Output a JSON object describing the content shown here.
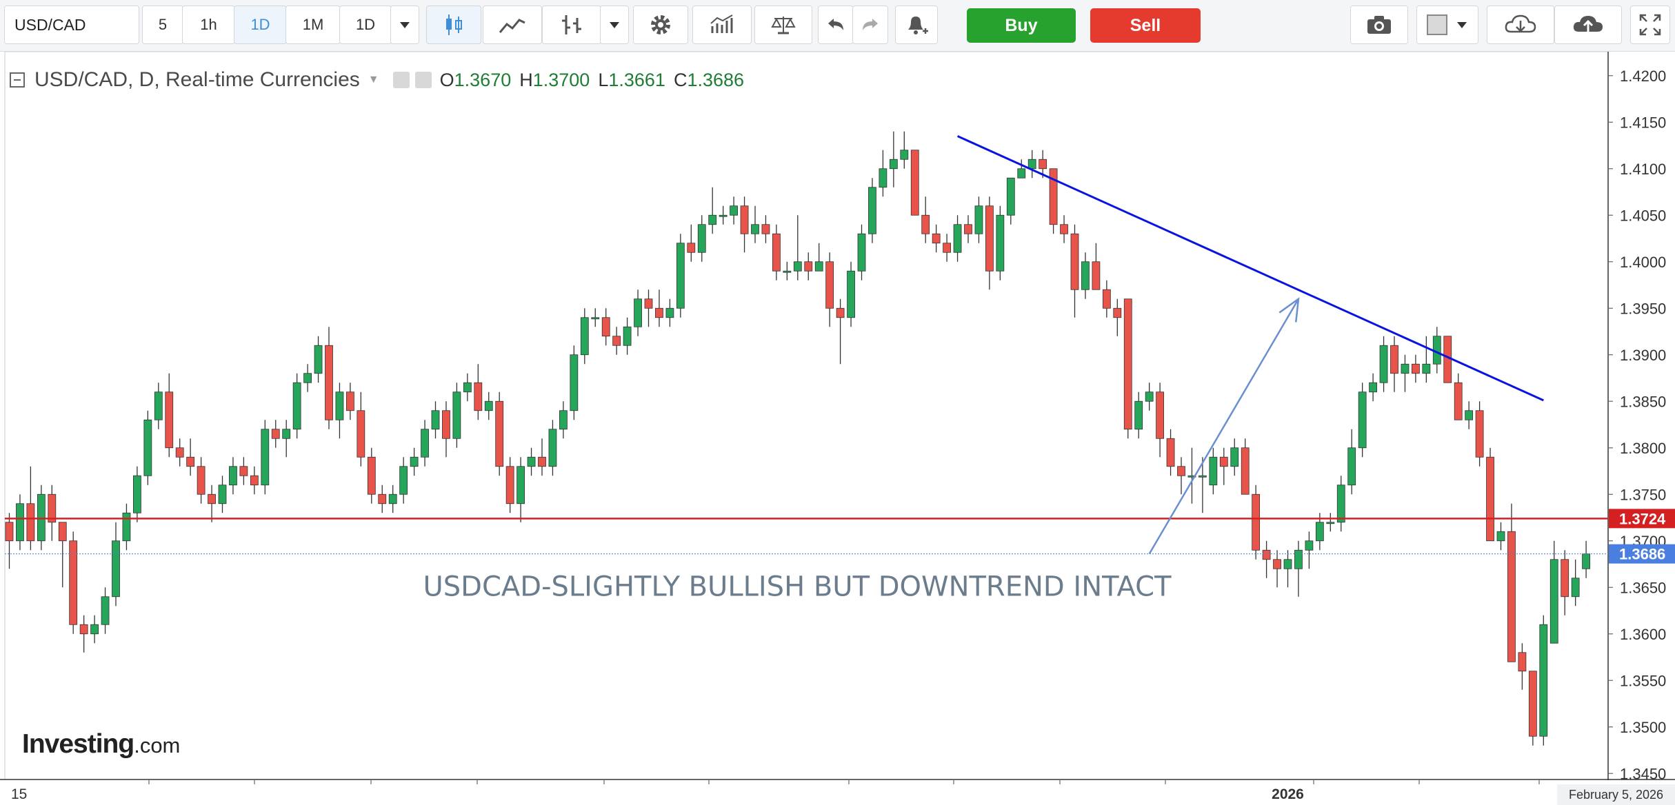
{
  "toolbar": {
    "symbol": "USD/CAD",
    "intervals": [
      "5",
      "1h",
      "1D",
      "1M",
      "1D"
    ],
    "active_interval_index": 2,
    "buy_label": "Buy",
    "sell_label": "Sell"
  },
  "legend": {
    "title": "USD/CAD, D, Real-time Currencies",
    "open_label": "O",
    "open": "1.3670",
    "high_label": "H",
    "high": "1.3700",
    "low_label": "L",
    "low": "1.3661",
    "close_label": "C",
    "close": "1.3686"
  },
  "logo": {
    "main": "Investing",
    "suffix": ".com"
  },
  "date_badge": "February 5, 2026",
  "colors": {
    "up": "#26a65b",
    "down": "#e8544a",
    "trendline": "#0a14e0",
    "support": "#d42020",
    "arrow": "#6a8fd0",
    "price_tag": "#4a7fe0",
    "annotation": "#6b7c8c"
  },
  "chart_data": {
    "type": "candlestick",
    "annotation": "USDCAD-SLIGHTLY BULLISH BUT DOWNTREND INTACT",
    "ylim": [
      1.3445,
      1.4225
    ],
    "y_ticks": [
      "1.4200",
      "1.4150",
      "1.4100",
      "1.4050",
      "1.4000",
      "1.3950",
      "1.3900",
      "1.3850",
      "1.3800",
      "1.3750",
      "1.3700",
      "1.3650",
      "1.3600",
      "1.3550",
      "1.3500",
      "1.3450"
    ],
    "x_labels": [
      {
        "index": 0,
        "text": "15"
      },
      {
        "index": 120,
        "text": "2026"
      }
    ],
    "horizontal_line": {
      "value": 1.3724,
      "label": "1.3724"
    },
    "last_price": {
      "value": 1.3686,
      "label": "1.3686"
    },
    "trendline": {
      "from": {
        "index": 89,
        "value": 1.4135
      },
      "to": {
        "index": 144,
        "value": 1.3851
      }
    },
    "arrow": {
      "from": {
        "index": 107,
        "value": 1.3686
      },
      "to": {
        "index": 121,
        "value": 1.396
      }
    },
    "candles": [
      [
        1.372,
        1.373,
        1.367,
        1.37
      ],
      [
        1.37,
        1.375,
        1.369,
        1.374
      ],
      [
        1.374,
        1.378,
        1.369,
        1.37
      ],
      [
        1.37,
        1.376,
        1.369,
        1.375
      ],
      [
        1.375,
        1.376,
        1.37,
        1.372
      ],
      [
        1.372,
        1.372,
        1.365,
        1.37
      ],
      [
        1.37,
        1.371,
        1.36,
        1.361
      ],
      [
        1.361,
        1.362,
        1.358,
        1.36
      ],
      [
        1.36,
        1.362,
        1.359,
        1.361
      ],
      [
        1.361,
        1.365,
        1.36,
        1.364
      ],
      [
        1.364,
        1.372,
        1.363,
        1.37
      ],
      [
        1.37,
        1.374,
        1.369,
        1.373
      ],
      [
        1.373,
        1.378,
        1.372,
        1.377
      ],
      [
        1.377,
        1.384,
        1.376,
        1.383
      ],
      [
        1.383,
        1.387,
        1.382,
        1.386
      ],
      [
        1.386,
        1.388,
        1.379,
        1.38
      ],
      [
        1.38,
        1.381,
        1.378,
        1.379
      ],
      [
        1.379,
        1.381,
        1.377,
        1.378
      ],
      [
        1.378,
        1.379,
        1.374,
        1.375
      ],
      [
        1.375,
        1.376,
        1.372,
        1.374
      ],
      [
        1.374,
        1.377,
        1.373,
        1.376
      ],
      [
        1.376,
        1.379,
        1.375,
        1.378
      ],
      [
        1.378,
        1.379,
        1.376,
        1.377
      ],
      [
        1.377,
        1.378,
        1.375,
        1.376
      ],
      [
        1.376,
        1.383,
        1.375,
        1.382
      ],
      [
        1.382,
        1.383,
        1.38,
        1.381
      ],
      [
        1.381,
        1.383,
        1.379,
        1.382
      ],
      [
        1.382,
        1.388,
        1.381,
        1.387
      ],
      [
        1.387,
        1.389,
        1.386,
        1.388
      ],
      [
        1.388,
        1.392,
        1.387,
        1.391
      ],
      [
        1.391,
        1.393,
        1.382,
        1.383
      ],
      [
        1.383,
        1.387,
        1.381,
        1.386
      ],
      [
        1.386,
        1.387,
        1.383,
        1.384
      ],
      [
        1.384,
        1.386,
        1.378,
        1.379
      ],
      [
        1.379,
        1.38,
        1.374,
        1.375
      ],
      [
        1.375,
        1.376,
        1.373,
        1.374
      ],
      [
        1.374,
        1.376,
        1.373,
        1.375
      ],
      [
        1.375,
        1.379,
        1.374,
        1.378
      ],
      [
        1.378,
        1.38,
        1.377,
        1.379
      ],
      [
        1.379,
        1.383,
        1.378,
        1.382
      ],
      [
        1.382,
        1.385,
        1.381,
        1.384
      ],
      [
        1.384,
        1.385,
        1.379,
        1.381
      ],
      [
        1.381,
        1.387,
        1.38,
        1.386
      ],
      [
        1.386,
        1.388,
        1.385,
        1.387
      ],
      [
        1.387,
        1.389,
        1.383,
        1.384
      ],
      [
        1.384,
        1.386,
        1.383,
        1.385
      ],
      [
        1.385,
        1.386,
        1.377,
        1.378
      ],
      [
        1.378,
        1.379,
        1.373,
        1.374
      ],
      [
        1.374,
        1.379,
        1.372,
        1.378
      ],
      [
        1.378,
        1.38,
        1.377,
        1.379
      ],
      [
        1.379,
        1.381,
        1.377,
        1.378
      ],
      [
        1.378,
        1.383,
        1.377,
        1.382
      ],
      [
        1.382,
        1.385,
        1.381,
        1.384
      ],
      [
        1.384,
        1.391,
        1.383,
        1.39
      ],
      [
        1.39,
        1.395,
        1.389,
        1.394
      ],
      [
        1.394,
        1.395,
        1.393,
        1.394
      ],
      [
        1.394,
        1.395,
        1.391,
        1.392
      ],
      [
        1.392,
        1.393,
        1.39,
        1.391
      ],
      [
        1.391,
        1.394,
        1.39,
        1.393
      ],
      [
        1.393,
        1.397,
        1.392,
        1.396
      ],
      [
        1.396,
        1.397,
        1.393,
        1.395
      ],
      [
        1.395,
        1.397,
        1.393,
        1.394
      ],
      [
        1.394,
        1.396,
        1.393,
        1.395
      ],
      [
        1.395,
        1.403,
        1.394,
        1.402
      ],
      [
        1.402,
        1.404,
        1.4,
        1.401
      ],
      [
        1.401,
        1.405,
        1.4,
        1.404
      ],
      [
        1.404,
        1.408,
        1.403,
        1.405
      ],
      [
        1.405,
        1.406,
        1.404,
        1.405
      ],
      [
        1.405,
        1.407,
        1.404,
        1.406
      ],
      [
        1.406,
        1.407,
        1.401,
        1.403
      ],
      [
        1.403,
        1.406,
        1.402,
        1.404
      ],
      [
        1.404,
        1.405,
        1.402,
        1.403
      ],
      [
        1.403,
        1.404,
        1.398,
        1.399
      ],
      [
        1.399,
        1.4,
        1.398,
        1.399
      ],
      [
        1.399,
        1.405,
        1.398,
        1.4
      ],
      [
        1.4,
        1.401,
        1.398,
        1.399
      ],
      [
        1.399,
        1.402,
        1.399,
        1.4
      ],
      [
        1.4,
        1.401,
        1.393,
        1.395
      ],
      [
        1.395,
        1.396,
        1.389,
        1.394
      ],
      [
        1.394,
        1.4,
        1.393,
        1.399
      ],
      [
        1.399,
        1.404,
        1.398,
        1.403
      ],
      [
        1.403,
        1.409,
        1.402,
        1.408
      ],
      [
        1.408,
        1.412,
        1.407,
        1.41
      ],
      [
        1.41,
        1.414,
        1.408,
        1.411
      ],
      [
        1.411,
        1.414,
        1.41,
        1.412
      ],
      [
        1.412,
        1.412,
        1.405,
        1.405
      ],
      [
        1.405,
        1.407,
        1.402,
        1.403
      ],
      [
        1.403,
        1.404,
        1.401,
        1.402
      ],
      [
        1.402,
        1.403,
        1.4,
        1.401
      ],
      [
        1.401,
        1.405,
        1.4,
        1.404
      ],
      [
        1.404,
        1.405,
        1.402,
        1.403
      ],
      [
        1.403,
        1.407,
        1.402,
        1.406
      ],
      [
        1.406,
        1.407,
        1.397,
        1.399
      ],
      [
        1.399,
        1.406,
        1.398,
        1.405
      ],
      [
        1.405,
        1.409,
        1.404,
        1.409
      ],
      [
        1.409,
        1.411,
        1.409,
        1.41
      ],
      [
        1.41,
        1.412,
        1.409,
        1.411
      ],
      [
        1.411,
        1.412,
        1.409,
        1.41
      ],
      [
        1.41,
        1.41,
        1.403,
        1.404
      ],
      [
        1.404,
        1.405,
        1.402,
        1.403
      ],
      [
        1.403,
        1.404,
        1.394,
        1.397
      ],
      [
        1.397,
        1.401,
        1.396,
        1.4
      ],
      [
        1.4,
        1.402,
        1.397,
        1.397
      ],
      [
        1.397,
        1.398,
        1.394,
        1.395
      ],
      [
        1.395,
        1.396,
        1.392,
        1.394
      ],
      [
        1.396,
        1.396,
        1.381,
        1.382
      ],
      [
        1.382,
        1.386,
        1.381,
        1.385
      ],
      [
        1.385,
        1.387,
        1.384,
        1.386
      ],
      [
        1.386,
        1.387,
        1.379,
        1.381
      ],
      [
        1.381,
        1.382,
        1.377,
        1.378
      ],
      [
        1.378,
        1.379,
        1.375,
        1.377
      ],
      [
        1.377,
        1.38,
        1.374,
        1.377
      ],
      [
        1.377,
        1.379,
        1.373,
        1.377
      ],
      [
        1.376,
        1.38,
        1.375,
        1.379
      ],
      [
        1.379,
        1.38,
        1.376,
        1.378
      ],
      [
        1.378,
        1.381,
        1.377,
        1.38
      ],
      [
        1.38,
        1.381,
        1.375,
        1.375
      ],
      [
        1.375,
        1.376,
        1.368,
        1.369
      ],
      [
        1.369,
        1.37,
        1.366,
        1.368
      ],
      [
        1.368,
        1.369,
        1.365,
        1.367
      ],
      [
        1.367,
        1.369,
        1.365,
        1.368
      ],
      [
        1.367,
        1.37,
        1.364,
        1.369
      ],
      [
        1.369,
        1.371,
        1.367,
        1.37
      ],
      [
        1.37,
        1.373,
        1.369,
        1.372
      ],
      [
        1.372,
        1.373,
        1.371,
        1.372
      ],
      [
        1.372,
        1.377,
        1.371,
        1.376
      ],
      [
        1.376,
        1.382,
        1.375,
        1.38
      ],
      [
        1.38,
        1.387,
        1.379,
        1.386
      ],
      [
        1.386,
        1.388,
        1.385,
        1.387
      ],
      [
        1.387,
        1.392,
        1.386,
        1.391
      ],
      [
        1.391,
        1.392,
        1.386,
        1.388
      ],
      [
        1.388,
        1.39,
        1.386,
        1.389
      ],
      [
        1.389,
        1.39,
        1.387,
        1.388
      ],
      [
        1.388,
        1.392,
        1.387,
        1.389
      ],
      [
        1.389,
        1.393,
        1.388,
        1.392
      ],
      [
        1.392,
        1.392,
        1.387,
        1.387
      ],
      [
        1.387,
        1.388,
        1.383,
        1.383
      ],
      [
        1.383,
        1.385,
        1.382,
        1.384
      ],
      [
        1.384,
        1.385,
        1.378,
        1.379
      ],
      [
        1.379,
        1.38,
        1.37,
        1.37
      ],
      [
        1.37,
        1.372,
        1.369,
        1.371
      ],
      [
        1.371,
        1.374,
        1.357,
        1.357
      ],
      [
        1.358,
        1.359,
        1.354,
        1.356
      ],
      [
        1.356,
        1.356,
        1.348,
        1.349
      ],
      [
        1.349,
        1.362,
        1.348,
        1.361
      ],
      [
        1.359,
        1.37,
        1.359,
        1.368
      ],
      [
        1.368,
        1.369,
        1.362,
        1.364
      ],
      [
        1.364,
        1.368,
        1.363,
        1.366
      ],
      [
        1.367,
        1.37,
        1.366,
        1.3686
      ]
    ]
  }
}
